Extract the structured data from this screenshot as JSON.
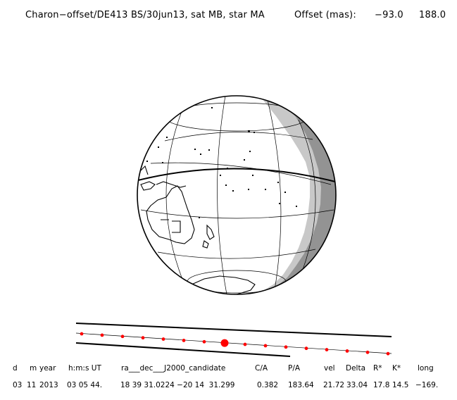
{
  "title": {
    "main": "Charon−offset/DE413 BS/30jun13, sat MB, star MA",
    "offset_label": "Offset (mas):",
    "offset_x": "−93.0",
    "offset_y": "188.0"
  },
  "table": {
    "headers": [
      "d",
      "m",
      "year",
      "h:m:s UT",
      "ra___dec___J2000_candidate",
      "C/A",
      "P/A",
      "vel",
      "Delta",
      "R*",
      "K*",
      "long"
    ],
    "values": [
      "03",
      "11",
      "2013",
      "03 05 44.",
      "18 39 31.0224 −20 14  31.299",
      "0.382",
      "183.64",
      "21.72",
      "33.04",
      "17.8",
      "14.5",
      "−169."
    ]
  },
  "colors": {
    "night_dark": "#939393",
    "twilight": "#c8c8c8",
    "marker": "#ff0000",
    "lines": "#000000"
  },
  "track": {
    "markers": 16,
    "highlight_index": 7
  }
}
